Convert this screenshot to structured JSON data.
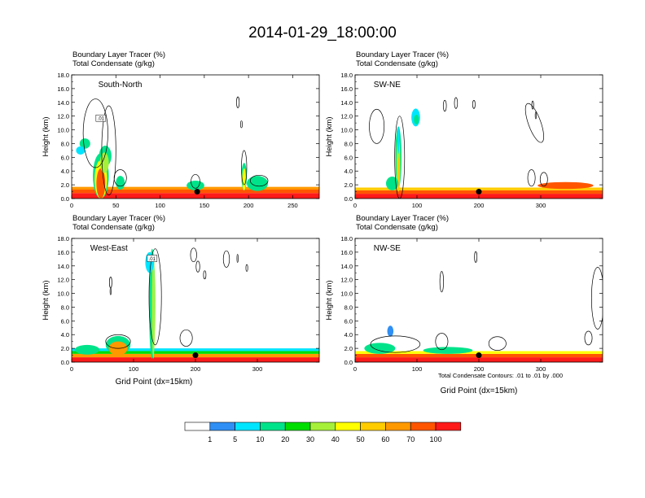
{
  "figure": {
    "title": "2014-01-29_18:00:00",
    "footnote": "Total Condensate Contours: .01 to .01 by .000",
    "contour_label": ".01"
  },
  "colors": {
    "levels": [
      "#ffffff",
      "#2f8ff5",
      "#00e5ff",
      "#00e38a",
      "#00dd00",
      "#a6f03a",
      "#ffff00",
      "#ffcc00",
      "#ff9900",
      "#ff5500",
      "#ff1a1a"
    ],
    "contour": "#000000"
  },
  "chart_data": [
    {
      "type": "heatmap",
      "name": "South-North",
      "title_line1": "Boundary Layer Tracer    (%)",
      "title_line2": "Total Condensate   (g/kg)",
      "xlabel": "",
      "ylabel": "Height (km)",
      "xlim": [
        0,
        280
      ],
      "ylim": [
        0,
        18
      ],
      "xticks": [
        0,
        50,
        100,
        150,
        200,
        250
      ],
      "yticks": [
        "0.0",
        "2.0",
        "4.0",
        "6.0",
        "8.0",
        "10.0",
        "12.0",
        "14.0",
        "16.0",
        "18.0"
      ],
      "markers": [
        {
          "x": 142,
          "y": 1.0
        }
      ],
      "background": [
        {
          "x": [
            0,
            280
          ],
          "y": [
            0,
            0.8
          ],
          "level": 10
        },
        {
          "x": [
            0,
            280
          ],
          "y": [
            0.8,
            1.3
          ],
          "level": 9
        },
        {
          "x": [
            0,
            280
          ],
          "y": [
            1.3,
            1.7
          ],
          "level": 8
        }
      ],
      "blobs": [
        {
          "x": 33,
          "y": 3.3,
          "w": 18,
          "h": 6.6,
          "level": 3
        },
        {
          "x": 33,
          "y": 2.8,
          "w": 14,
          "h": 5.6,
          "level": 6
        },
        {
          "x": 33,
          "y": 2.2,
          "w": 10,
          "h": 4.4,
          "level": 9
        },
        {
          "x": 15,
          "y": 8.0,
          "w": 12,
          "h": 1.5,
          "level": 3
        },
        {
          "x": 38,
          "y": 6.2,
          "w": 14,
          "h": 3.0,
          "level": 3
        },
        {
          "x": 37,
          "y": 5.2,
          "w": 10,
          "h": 3.0,
          "level": 5
        },
        {
          "x": 10,
          "y": 7.0,
          "w": 10,
          "h": 1.2,
          "level": 2
        },
        {
          "x": 55,
          "y": 2.3,
          "w": 10,
          "h": 2.0,
          "level": 3
        },
        {
          "x": 195,
          "y": 3.2,
          "w": 6,
          "h": 4.0,
          "level": 3
        },
        {
          "x": 195,
          "y": 2.8,
          "w": 4,
          "h": 3.2,
          "level": 6
        },
        {
          "x": 210,
          "y": 2.2,
          "w": 24,
          "h": 2.2,
          "level": 3
        },
        {
          "x": 140,
          "y": 1.9,
          "w": 20,
          "h": 1.4,
          "level": 3
        }
      ],
      "contours": [
        {
          "x": 27,
          "y": 9.5,
          "rx": 14,
          "ry": 5,
          "rot": 0
        },
        {
          "x": 42,
          "y": 7,
          "rx": 8,
          "ry": 6.5,
          "rot": 0
        },
        {
          "x": 140,
          "y": 2.5,
          "rx": 5,
          "ry": 1,
          "rot": 0
        },
        {
          "x": 195,
          "y": 4.5,
          "rx": 3,
          "ry": 2.5,
          "rot": 0
        },
        {
          "x": 188,
          "y": 14,
          "rx": 1.5,
          "ry": 0.8,
          "rot": 0
        },
        {
          "x": 192,
          "y": 10.8,
          "rx": 1,
          "ry": 0.5,
          "rot": 0
        },
        {
          "x": 55,
          "y": 3,
          "rx": 7,
          "ry": 1.2,
          "rot": 0
        },
        {
          "x": 212,
          "y": 2.6,
          "rx": 10,
          "ry": 0.8,
          "rot": 0
        }
      ],
      "label": {
        "text": "South-North",
        "x": 30,
        "y": 16.2
      }
    },
    {
      "type": "heatmap",
      "name": "SW-NE",
      "title_line1": "Boundary Layer Tracer    (%)",
      "title_line2": "Total Condensate   (g/kg)",
      "xlabel": "",
      "ylabel": "Height (km)",
      "xlim": [
        0,
        400
      ],
      "ylim": [
        0,
        18
      ],
      "xticks": [
        0,
        100,
        200,
        300
      ],
      "yticks": [
        "0.0",
        "2.0",
        "4.0",
        "6.0",
        "8.0",
        "10.0",
        "12.0",
        "14.0",
        "16.0",
        "18.0"
      ],
      "markers": [
        {
          "x": 200,
          "y": 1.0
        }
      ],
      "background": [
        {
          "x": [
            0,
            400
          ],
          "y": [
            0,
            0.7
          ],
          "level": 10
        },
        {
          "x": [
            0,
            400
          ],
          "y": [
            0.7,
            1.2
          ],
          "level": 9
        },
        {
          "x": [
            0,
            400
          ],
          "y": [
            1.2,
            1.6
          ],
          "level": 7
        }
      ],
      "blobs": [
        {
          "x": 70,
          "y": 6.0,
          "w": 10,
          "h": 9.0,
          "level": 3
        },
        {
          "x": 70,
          "y": 5.0,
          "w": 6,
          "h": 8.0,
          "level": 5
        },
        {
          "x": 70,
          "y": 3.5,
          "w": 4,
          "h": 5.0,
          "level": 7
        },
        {
          "x": 70,
          "y": 8.5,
          "w": 3,
          "h": 4.0,
          "level": 2
        },
        {
          "x": 98,
          "y": 11.8,
          "w": 14,
          "h": 2.6,
          "level": 2
        },
        {
          "x": 99,
          "y": 11.5,
          "w": 8,
          "h": 1.4,
          "level": 3
        },
        {
          "x": 60,
          "y": 2.2,
          "w": 20,
          "h": 2.0,
          "level": 3
        },
        {
          "x": 340,
          "y": 1.9,
          "w": 90,
          "h": 1.0,
          "level": 9
        }
      ],
      "contours": [
        {
          "x": 35,
          "y": 10.5,
          "rx": 12,
          "ry": 2.5,
          "rot": 0
        },
        {
          "x": 72,
          "y": 6,
          "rx": 8,
          "ry": 6,
          "rot": 0
        },
        {
          "x": 145,
          "y": 13.5,
          "rx": 2.5,
          "ry": 0.8,
          "rot": 0
        },
        {
          "x": 163,
          "y": 13.9,
          "rx": 2.5,
          "ry": 0.8,
          "rot": 0
        },
        {
          "x": 192,
          "y": 13.7,
          "rx": 2,
          "ry": 0.6,
          "rot": 0
        },
        {
          "x": 287,
          "y": 13.6,
          "rx": 1.5,
          "ry": 0.6,
          "rot": 0
        },
        {
          "x": 292,
          "y": 12.1,
          "rx": 1,
          "ry": 0.5,
          "rot": 0
        },
        {
          "x": 285,
          "y": 3.0,
          "rx": 6,
          "ry": 1.2,
          "rot": 0
        },
        {
          "x": 305,
          "y": 2.8,
          "rx": 6,
          "ry": 1.0,
          "rot": 0
        },
        {
          "x": 290,
          "y": 11,
          "rx": 10,
          "ry": 3,
          "rot": -20
        }
      ],
      "label": {
        "text": "SW-NE",
        "x": 30,
        "y": 16.2
      }
    },
    {
      "type": "heatmap",
      "name": "West-East",
      "title_line1": "Boundary Layer Tracer    (%)",
      "title_line2": "Total Condensate   (g/kg)",
      "xlabel": "Grid Point  (dx=15km)",
      "ylabel": "Height (km)",
      "xlim": [
        0,
        400
      ],
      "ylim": [
        0,
        18
      ],
      "xticks": [
        0,
        100,
        200,
        300
      ],
      "yticks": [
        "0.0",
        "2.0",
        "4.0",
        "6.0",
        "8.0",
        "10.0",
        "12.0",
        "14.0",
        "16.0",
        "18.0"
      ],
      "markers": [
        {
          "x": 200,
          "y": 1.0
        }
      ],
      "background": [
        {
          "x": [
            0,
            400
          ],
          "y": [
            0,
            0.7
          ],
          "level": 10
        },
        {
          "x": [
            0,
            400
          ],
          "y": [
            0.7,
            1.2
          ],
          "level": 8
        },
        {
          "x": [
            0,
            400
          ],
          "y": [
            1.2,
            1.6
          ],
          "level": 4
        },
        {
          "x": [
            0,
            400
          ],
          "y": [
            1.6,
            2.0
          ],
          "level": 2
        }
      ],
      "blobs": [
        {
          "x": 130,
          "y": 8.5,
          "w": 10,
          "h": 16,
          "level": 3
        },
        {
          "x": 132,
          "y": 8,
          "w": 5,
          "h": 15,
          "level": 5
        },
        {
          "x": 126,
          "y": 14.5,
          "w": 14,
          "h": 3.0,
          "level": 2
        },
        {
          "x": 75,
          "y": 2.5,
          "w": 40,
          "h": 2.6,
          "level": 3
        },
        {
          "x": 75,
          "y": 2.0,
          "w": 30,
          "h": 2.0,
          "level": 8
        },
        {
          "x": 25,
          "y": 1.8,
          "w": 40,
          "h": 1.4,
          "level": 3
        }
      ],
      "contours": [
        {
          "x": 135,
          "y": 9.5,
          "rx": 10,
          "ry": 7.0,
          "rot": 0
        },
        {
          "x": 197,
          "y": 15.6,
          "rx": 5,
          "ry": 1.0,
          "rot": 0
        },
        {
          "x": 204,
          "y": 13.9,
          "rx": 3,
          "ry": 0.8,
          "rot": 0
        },
        {
          "x": 215,
          "y": 12.7,
          "rx": 2,
          "ry": 0.6,
          "rot": 0
        },
        {
          "x": 250,
          "y": 15.0,
          "rx": 5,
          "ry": 1.2,
          "rot": 0
        },
        {
          "x": 283,
          "y": 13.7,
          "rx": 1.5,
          "ry": 0.5,
          "rot": 0
        },
        {
          "x": 268,
          "y": 15.1,
          "rx": 1,
          "ry": 0.6,
          "rot": 0
        },
        {
          "x": 63,
          "y": 11.6,
          "rx": 2,
          "ry": 0.8,
          "rot": 0
        },
        {
          "x": 63,
          "y": 10.3,
          "rx": 1,
          "ry": 0.5,
          "rot": 0
        },
        {
          "x": 185,
          "y": 3.5,
          "rx": 10,
          "ry": 1.2,
          "rot": 0
        },
        {
          "x": 75,
          "y": 3.0,
          "rx": 20,
          "ry": 1.0,
          "rot": 0
        }
      ],
      "label": {
        "text": "West-East",
        "x": 30,
        "y": 16.2
      }
    },
    {
      "type": "heatmap",
      "name": "NW-SE",
      "title_line1": "Boundary Layer Tracer    (%)",
      "title_line2": "Total Condensate   (g/kg)",
      "xlabel": "Grid Point  (dx=15km)",
      "ylabel": "Height (km)",
      "xlim": [
        0,
        400
      ],
      "ylim": [
        0,
        18
      ],
      "xticks": [
        0,
        100,
        200,
        300
      ],
      "yticks": [
        "0.0",
        "2.0",
        "4.0",
        "6.0",
        "8.0",
        "10.0",
        "12.0",
        "14.0",
        "16.0",
        "18.0"
      ],
      "markers": [
        {
          "x": 200,
          "y": 1.0
        }
      ],
      "background": [
        {
          "x": [
            0,
            400
          ],
          "y": [
            0,
            0.7
          ],
          "level": 10
        },
        {
          "x": [
            0,
            400
          ],
          "y": [
            0.7,
            1.2
          ],
          "level": 9
        },
        {
          "x": [
            0,
            400
          ],
          "y": [
            1.2,
            1.6
          ],
          "level": 6
        }
      ],
      "blobs": [
        {
          "x": 57,
          "y": 4.5,
          "w": 10,
          "h": 1.6,
          "level": 1
        },
        {
          "x": 40,
          "y": 2.0,
          "w": 50,
          "h": 1.6,
          "level": 3
        },
        {
          "x": 150,
          "y": 1.7,
          "w": 80,
          "h": 1.0,
          "level": 3
        }
      ],
      "contours": [
        {
          "x": 392,
          "y": 9.3,
          "rx": 10,
          "ry": 4.5,
          "rot": 0
        },
        {
          "x": 140,
          "y": 11.7,
          "rx": 3,
          "ry": 1.5,
          "rot": 0
        },
        {
          "x": 195,
          "y": 15.3,
          "rx": 2,
          "ry": 0.8,
          "rot": 0
        },
        {
          "x": 377,
          "y": 3.5,
          "rx": 6,
          "ry": 1.0,
          "rot": 0
        },
        {
          "x": 65,
          "y": 2.6,
          "rx": 40,
          "ry": 1.2,
          "rot": 0
        },
        {
          "x": 140,
          "y": 3.0,
          "rx": 10,
          "ry": 1.2,
          "rot": 0
        },
        {
          "x": 230,
          "y": 2.7,
          "rx": 14,
          "ry": 1.0,
          "rot": 0
        }
      ],
      "label": {
        "text": "NW-SE",
        "x": 30,
        "y": 16.2
      }
    }
  ],
  "colorbar": {
    "labels": [
      "1",
      "5",
      "10",
      "20",
      "30",
      "40",
      "50",
      "60",
      "70",
      "100"
    ]
  }
}
